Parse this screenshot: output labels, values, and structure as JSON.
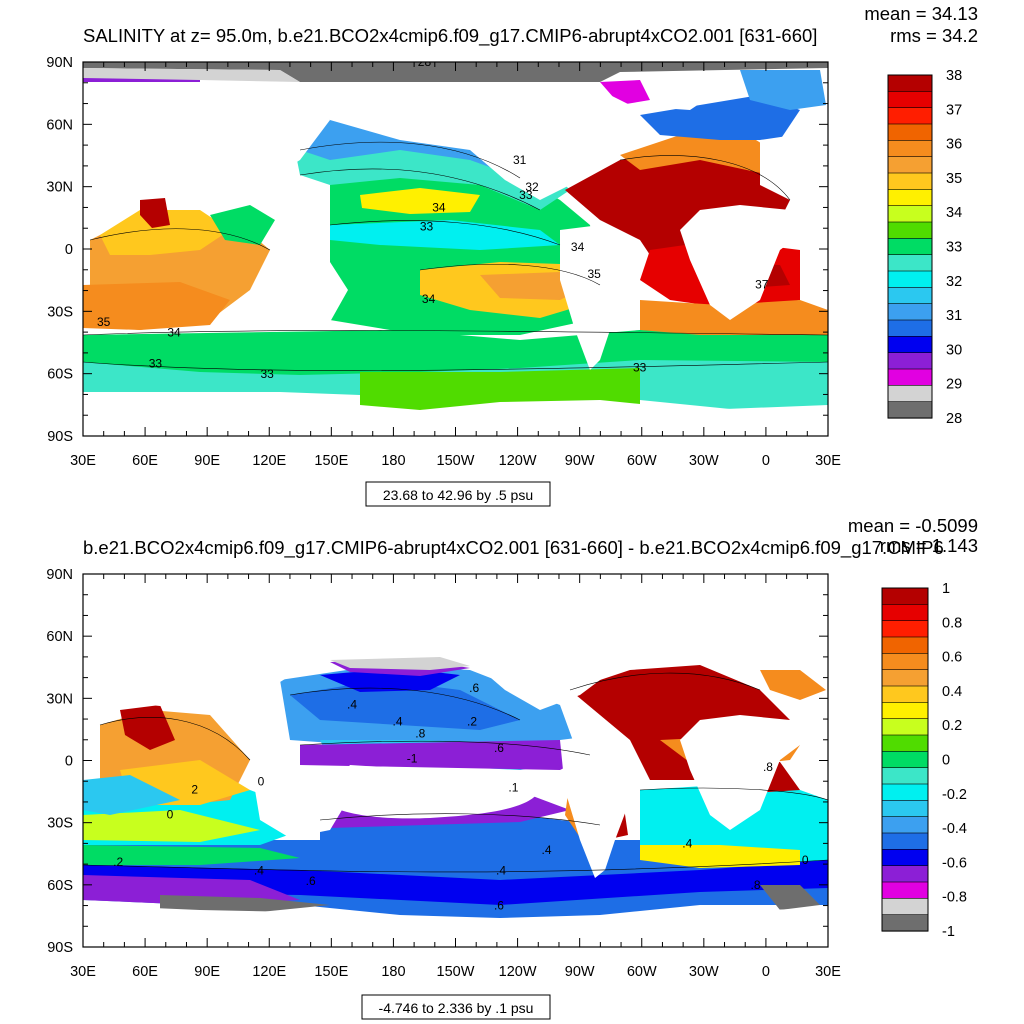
{
  "palettes": {
    "salinity": [
      "#6e6e6e",
      "#d3d3d3",
      "#e100e1",
      "#8c1fd6",
      "#0000f0",
      "#1e6ee6",
      "#3ca0f0",
      "#2bc8f0",
      "#00f0f0",
      "#3ce6c8",
      "#00dc64",
      "#50dc00",
      "#c8ff1e",
      "#fff000",
      "#ffc81e",
      "#f5a032",
      "#f58c1e",
      "#f06400",
      "#ff1e00",
      "#e60000",
      "#b40000"
    ],
    "diff": [
      "#6e6e6e",
      "#d3d3d3",
      "#e100e1",
      "#8c1fd6",
      "#0000f0",
      "#1e6ee6",
      "#3ca0f0",
      "#2bc8f0",
      "#00f0f0",
      "#3ce6c8",
      "#00dc64",
      "#50dc00",
      "#c8ff1e",
      "#fff000",
      "#ffc81e",
      "#f5a032",
      "#f58c1e",
      "#f06400",
      "#ff1e00",
      "#e60000",
      "#b40000"
    ]
  },
  "chart_data": [
    {
      "type": "heatmap",
      "id": "top",
      "title": "SALINITY at z=  95.0m, b.e21.BCO2x4cmip6.f09_g17.CMIP6-abrupt4xCO2.001 [631-660]",
      "mean_label": "mean = 34.13",
      "rms_label": "rms = 34.2",
      "range_label": "23.68 to 42.96 by .5 psu",
      "x_tick_labels": [
        "30E",
        "60E",
        "90E",
        "120E",
        "150E",
        "180",
        "150W",
        "120W",
        "90W",
        "60W",
        "30W",
        "0",
        "30E"
      ],
      "y_tick_labels": [
        "90N",
        "60N",
        "30N",
        "0",
        "30S",
        "60S",
        "90S"
      ],
      "lon_range": [
        30,
        390
      ],
      "lat_range": [
        -90,
        90
      ],
      "colorbar_labels": [
        "38",
        "37",
        "36",
        "35",
        "34",
        "33",
        "32",
        "31",
        "30",
        "29",
        "28"
      ],
      "contour_labels": [
        {
          "text": "28",
          "lon": 195,
          "lat": 88
        },
        {
          "text": "31",
          "lon": 241,
          "lat": 41
        },
        {
          "text": "32",
          "lon": 247,
          "lat": 28
        },
        {
          "text": "33",
          "lon": 244,
          "lat": 24
        },
        {
          "text": "34",
          "lon": 202,
          "lat": 18
        },
        {
          "text": "33",
          "lon": 196,
          "lat": 9
        },
        {
          "text": "34",
          "lon": 269,
          "lat": -1
        },
        {
          "text": "35",
          "lon": 277,
          "lat": -14
        },
        {
          "text": "34",
          "lon": 197,
          "lat": -26
        },
        {
          "text": "37",
          "lon": 358,
          "lat": -19
        },
        {
          "text": "35",
          "lon": 40,
          "lat": -37
        },
        {
          "text": "34",
          "lon": 74,
          "lat": -42
        },
        {
          "text": "33",
          "lon": 65,
          "lat": -57
        },
        {
          "text": "33",
          "lon": 119,
          "lat": -62
        },
        {
          "text": "33",
          "lon": 299,
          "lat": -59
        }
      ]
    },
    {
      "type": "heatmap",
      "id": "bottom",
      "title": "b.e21.BCO2x4cmip6.f09_g17.CMIP6-abrupt4xCO2.001 [631-660] - b.e21.BCO2x4cmip6.f09_g17.CMIP6",
      "mean_label": "mean = -0.5099",
      "rms_label": "rms = 1.143",
      "range_label": "-4.746 to 2.336 by .1 psu",
      "x_tick_labels": [
        "30E",
        "60E",
        "90E",
        "120E",
        "150E",
        "180",
        "150W",
        "120W",
        "90W",
        "60W",
        "30W",
        "0",
        "30E"
      ],
      "y_tick_labels": [
        "90N",
        "60N",
        "30N",
        "0",
        "30S",
        "60S",
        "90S"
      ],
      "lon_range": [
        30,
        390
      ],
      "lat_range": [
        -90,
        90
      ],
      "colorbar_labels": [
        "1",
        "0.8",
        "0.6",
        "0.4",
        "0.2",
        "0",
        "-0.2",
        "-0.4",
        "-0.6",
        "-0.8",
        "-1"
      ],
      "contour_labels": [
        {
          "text": ".6",
          "lon": 219,
          "lat": 33
        },
        {
          "text": ".4",
          "lon": 160,
          "lat": 25
        },
        {
          "text": ".4",
          "lon": 182,
          "lat": 17
        },
        {
          "text": ".2",
          "lon": 218,
          "lat": 17
        },
        {
          "text": ".6",
          "lon": 231,
          "lat": 4
        },
        {
          "text": ".8",
          "lon": 193,
          "lat": 11
        },
        {
          "text": "-1",
          "lon": 189,
          "lat": -1
        },
        {
          "text": "2",
          "lon": 84,
          "lat": -16
        },
        {
          "text": "0",
          "lon": 72,
          "lat": -28
        },
        {
          "text": "0",
          "lon": 116,
          "lat": -12
        },
        {
          "text": ".1",
          "lon": 238,
          "lat": -15
        },
        {
          "text": ".4",
          "lon": 254,
          "lat": -45
        },
        {
          "text": ".2",
          "lon": 47,
          "lat": -51
        },
        {
          "text": ".4",
          "lon": 115,
          "lat": -55
        },
        {
          "text": ".6",
          "lon": 140,
          "lat": -60
        },
        {
          "text": ".4",
          "lon": 232,
          "lat": -55
        },
        {
          "text": ".6",
          "lon": 231,
          "lat": -72
        },
        {
          "text": ".8",
          "lon": 355,
          "lat": -62
        },
        {
          "text": ".8",
          "lon": 361,
          "lat": -5
        },
        {
          "text": ".4",
          "lon": 322,
          "lat": -42
        },
        {
          "text": "0",
          "lon": 379,
          "lat": -50
        }
      ]
    }
  ]
}
